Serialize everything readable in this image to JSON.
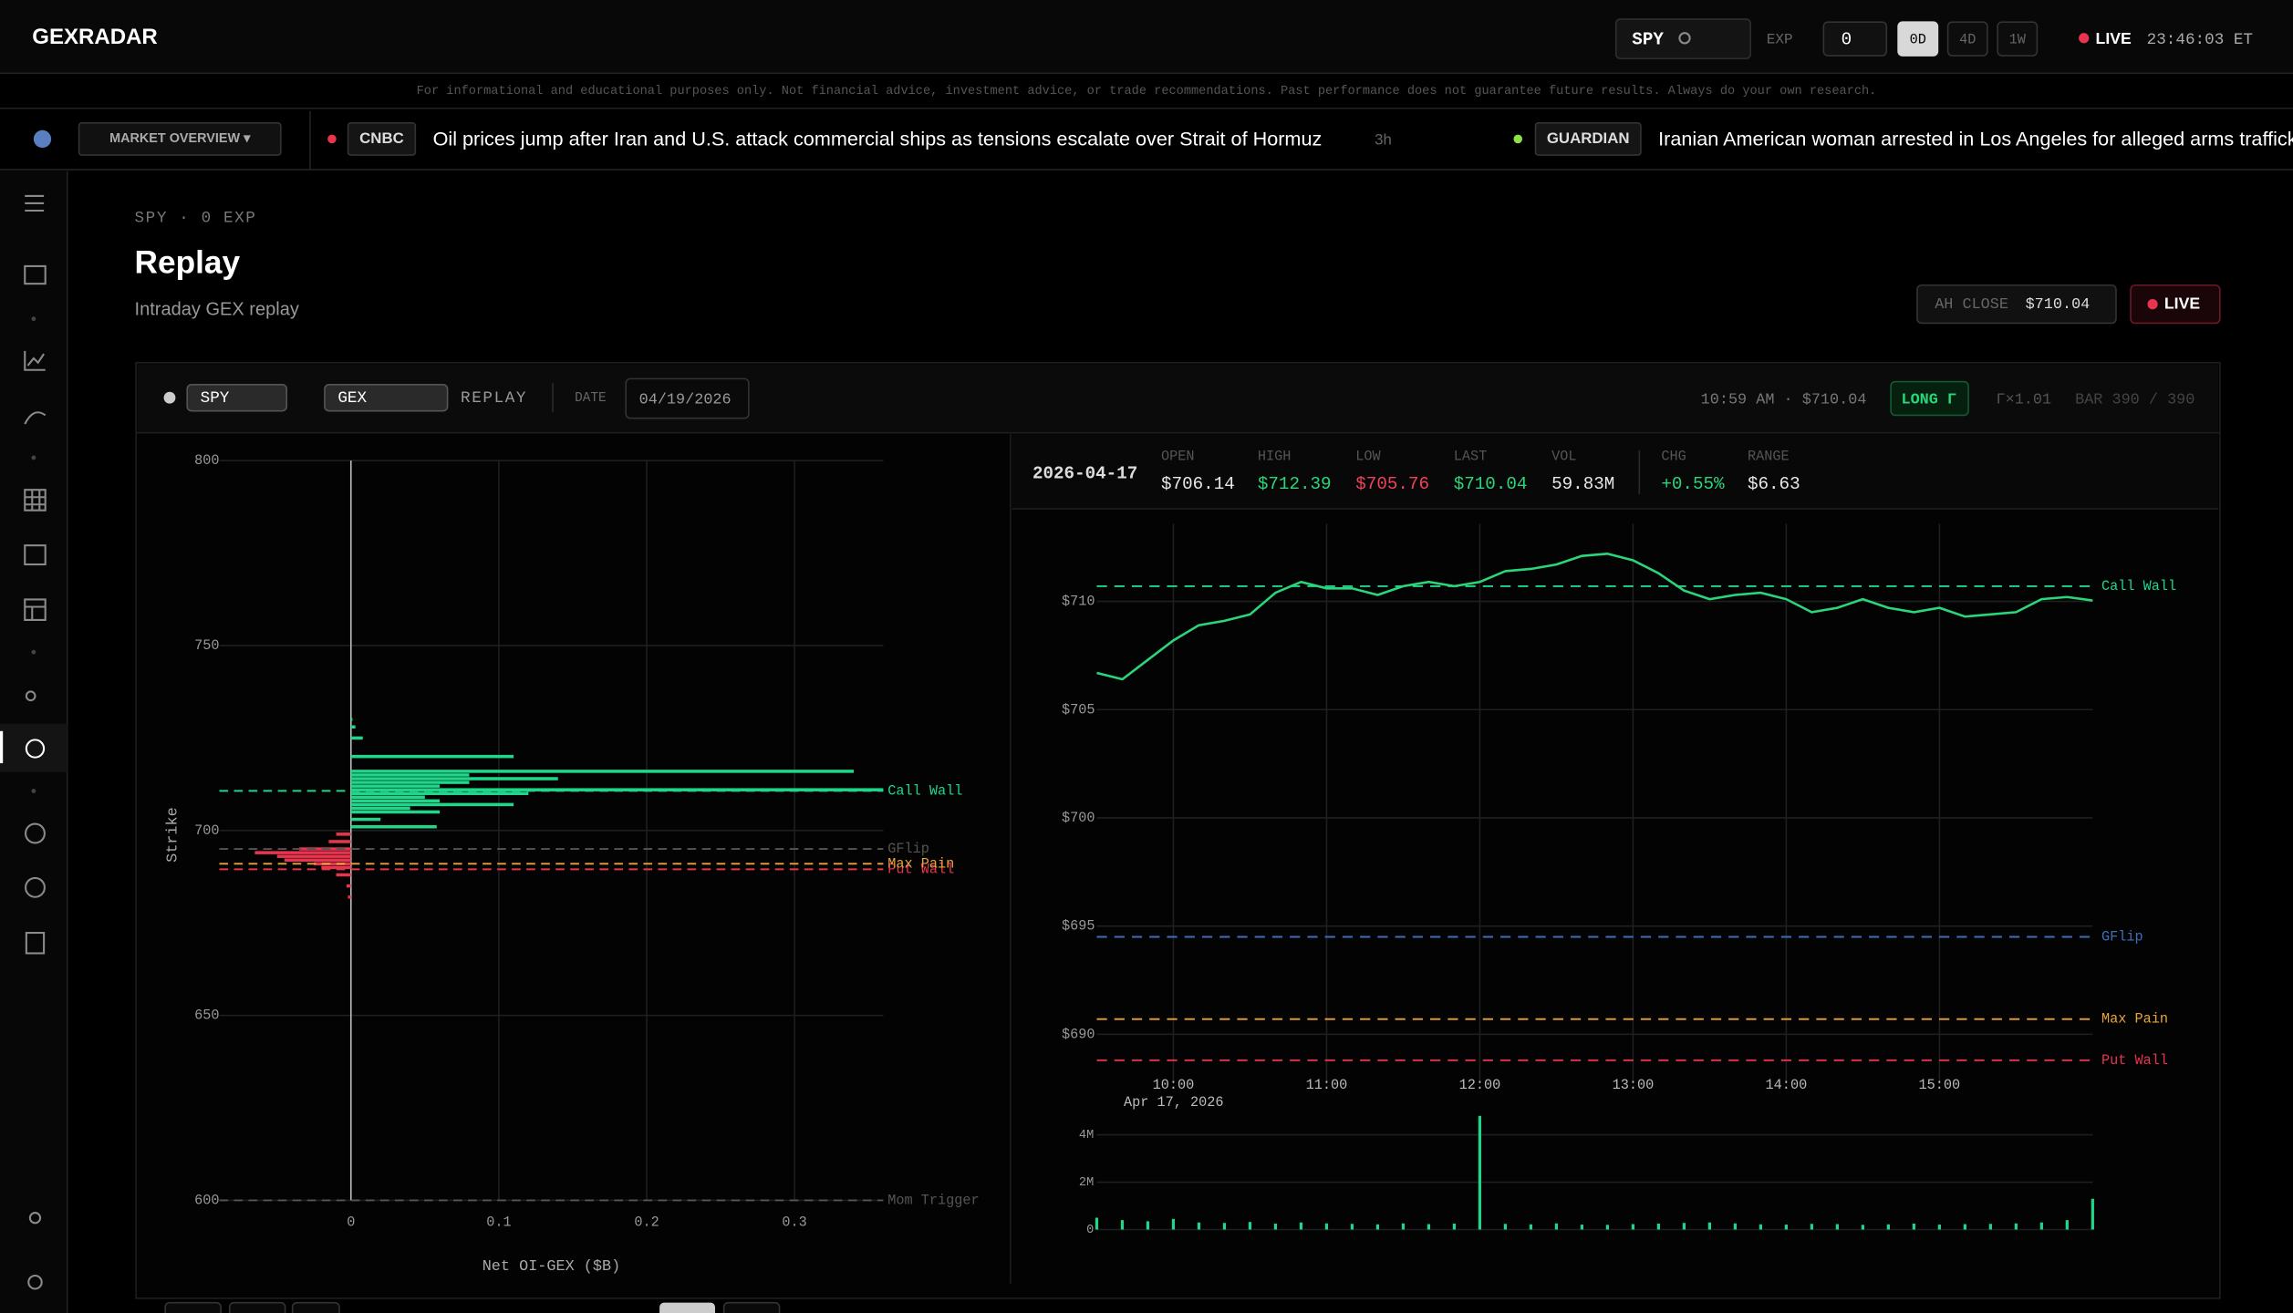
{
  "header": {
    "brand": "GEXRADAR",
    "ticker": "SPY",
    "exp_label": "EXP",
    "exp_value": "0",
    "ranges": [
      "0D",
      "4D",
      "1W"
    ],
    "live": "LIVE",
    "clock": "23:46:03 ET"
  },
  "disclaimer": "For informational and educational purposes only. Not financial advice, investment advice, or trade recommendations. Past performance does not guarantee future results. Always do your own research.",
  "ticker_bar": {
    "market_overview": "MARKET OVERVIEW ▾",
    "news": [
      {
        "source": "CNBC",
        "headline": "Oil prices jump after Iran and U.S. attack commercial ships as tensions escalate over Strait of Hormuz",
        "age": "3h"
      },
      {
        "source": "GUARDIAN",
        "headline": "Iranian American woman arrested in Los Angeles for alleged arms trafficking"
      }
    ]
  },
  "page": {
    "breadcrumb": "SPY · 0 EXP",
    "title": "Replay",
    "subtitle": "Intraday GEX replay",
    "ah_close_label": "AH CLOSE",
    "ah_close_value": "$710.04",
    "live_button": "LIVE"
  },
  "toolbar": {
    "symbol": "SPY",
    "metric": "GEX",
    "mode": "REPLAY",
    "date_label": "DATE",
    "date": "04/19/2026",
    "time_price": "10:59 AM · $710.04",
    "bias": "LONG Γ",
    "gamma_ratio": "Γ×1.01",
    "bar": "BAR 390 / 390"
  },
  "quote": {
    "date": "2026-04-17",
    "fields": [
      {
        "label": "OPEN",
        "value": "$706.14",
        "color": "#e8e8e8"
      },
      {
        "label": "HIGH",
        "value": "$712.39",
        "color": "#2bd67b"
      },
      {
        "label": "LOW",
        "value": "$705.76",
        "color": "#f0435a"
      },
      {
        "label": "LAST",
        "value": "$710.04",
        "color": "#2bd67b"
      },
      {
        "label": "VOL",
        "value": "59.83M",
        "color": "#e8e8e8"
      },
      {
        "label": "CHG",
        "value": "+0.55%",
        "color": "#2bd67b"
      },
      {
        "label": "RANGE",
        "value": "$6.63",
        "color": "#e8e8e8"
      }
    ]
  },
  "chart_data": [
    {
      "type": "bar",
      "orientation": "horizontal",
      "x_label": "Net OI-GEX ($B)",
      "y_label": "Strike",
      "y": [
        730,
        728,
        725,
        720,
        716,
        715,
        714,
        713,
        712,
        711,
        710,
        709,
        708,
        707,
        706,
        705,
        703,
        701,
        699,
        697,
        695,
        694,
        693,
        692,
        691,
        690,
        688,
        685,
        682
      ],
      "values": [
        0.001,
        0.003,
        0.008,
        0.11,
        0.34,
        0.08,
        0.14,
        0.08,
        0.06,
        0.36,
        0.12,
        0.05,
        0.06,
        0.11,
        0.04,
        0.06,
        0.02,
        0.058,
        -0.01,
        -0.015,
        -0.035,
        -0.065,
        -0.05,
        -0.045,
        -0.025,
        -0.02,
        -0.01,
        -0.003,
        -0.002
      ],
      "color_positive": "#1fd68a",
      "color_negative": "#e8344e",
      "xlim": [
        -0.089,
        0.36
      ],
      "xticks": [
        0,
        0.1,
        0.2,
        0.3
      ],
      "ylim": [
        600,
        800
      ],
      "yticks": [
        600,
        650,
        700,
        750,
        800
      ],
      "grid": true,
      "levels": [
        {
          "name": "Call Wall",
          "value": 710.7,
          "color": "#1fd68a"
        },
        {
          "name": "GFlip",
          "value": 695,
          "color": "#555555"
        },
        {
          "name": "Put Wall",
          "value": 689.5,
          "color": "#e8344e"
        },
        {
          "name": "Max Pain",
          "value": 691,
          "color": "#e8a43a"
        },
        {
          "name": "Mom Trigger",
          "value": 600,
          "color": "#555555"
        }
      ]
    },
    {
      "type": "line",
      "date_label": "Apr 17, 2026",
      "color": "#2bd67b",
      "x": [
        570,
        580,
        590,
        600,
        610,
        620,
        630,
        640,
        650,
        660,
        670,
        680,
        690,
        700,
        710,
        720,
        730,
        740,
        750,
        760,
        770,
        780,
        790,
        800,
        810,
        820,
        830,
        840,
        850,
        860,
        870,
        880,
        890,
        900,
        910,
        920,
        930,
        940,
        950,
        960
      ],
      "values": [
        706.7,
        706.4,
        707.3,
        708.2,
        708.9,
        709.1,
        709.4,
        710.4,
        710.9,
        710.6,
        710.6,
        710.3,
        710.7,
        710.9,
        710.7,
        710.9,
        711.4,
        711.5,
        711.7,
        712.1,
        712.2,
        711.9,
        711.3,
        710.5,
        710.1,
        710.3,
        710.4,
        710.1,
        709.5,
        709.7,
        710.1,
        709.7,
        709.5,
        709.7,
        709.3,
        709.4,
        709.5,
        710.1,
        710.2,
        710.04
      ],
      "xlim": [
        570,
        960
      ],
      "xticks": [
        {
          "value": 600,
          "label": "10:00"
        },
        {
          "value": 660,
          "label": "11:00"
        },
        {
          "value": 720,
          "label": "12:00"
        },
        {
          "value": 780,
          "label": "13:00"
        },
        {
          "value": 840,
          "label": "14:00"
        },
        {
          "value": 900,
          "label": "15:00"
        }
      ],
      "ylim": [
        687.8,
        713.6
      ],
      "yticks": [
        {
          "value": 690,
          "label": "$690"
        },
        {
          "value": 695,
          "label": "$695"
        },
        {
          "value": 700,
          "label": "$700"
        },
        {
          "value": 705,
          "label": "$705"
        },
        {
          "value": 710,
          "label": "$710"
        }
      ],
      "grid": true,
      "levels": [
        {
          "name": "Call Wall",
          "value": 710.7,
          "color": "#1fd68a"
        },
        {
          "name": "GFlip",
          "value": 694.5,
          "color": "#3d6fb8"
        },
        {
          "name": "Max Pain",
          "value": 690.7,
          "color": "#e8a43a"
        },
        {
          "name": "Put Wall",
          "value": 688.8,
          "color": "#e8344e"
        }
      ]
    },
    {
      "type": "bar",
      "color": "#1fd68a",
      "x": [
        570,
        580,
        590,
        600,
        610,
        620,
        630,
        640,
        650,
        660,
        670,
        680,
        690,
        700,
        710,
        720,
        730,
        740,
        750,
        760,
        770,
        780,
        790,
        800,
        810,
        820,
        830,
        840,
        850,
        860,
        870,
        880,
        890,
        900,
        910,
        920,
        930,
        940,
        950,
        960
      ],
      "values": [
        500000,
        400000,
        350000,
        450000,
        300000,
        280000,
        320000,
        250000,
        300000,
        260000,
        240000,
        220000,
        260000,
        230000,
        250000,
        4800000,
        240000,
        220000,
        260000,
        210000,
        200000,
        230000,
        250000,
        280000,
        300000,
        260000,
        220000,
        210000,
        240000,
        230000,
        200000,
        220000,
        250000,
        210000,
        230000,
        240000,
        260000,
        300000,
        400000,
        1300000
      ],
      "xlim": [
        570,
        960
      ],
      "ylim": [
        0,
        5000000
      ],
      "yticks": [
        0,
        {
          "value": 2000000,
          "label": "2M"
        },
        {
          "value": 4000000,
          "label": "4M"
        }
      ],
      "grid": true
    }
  ]
}
